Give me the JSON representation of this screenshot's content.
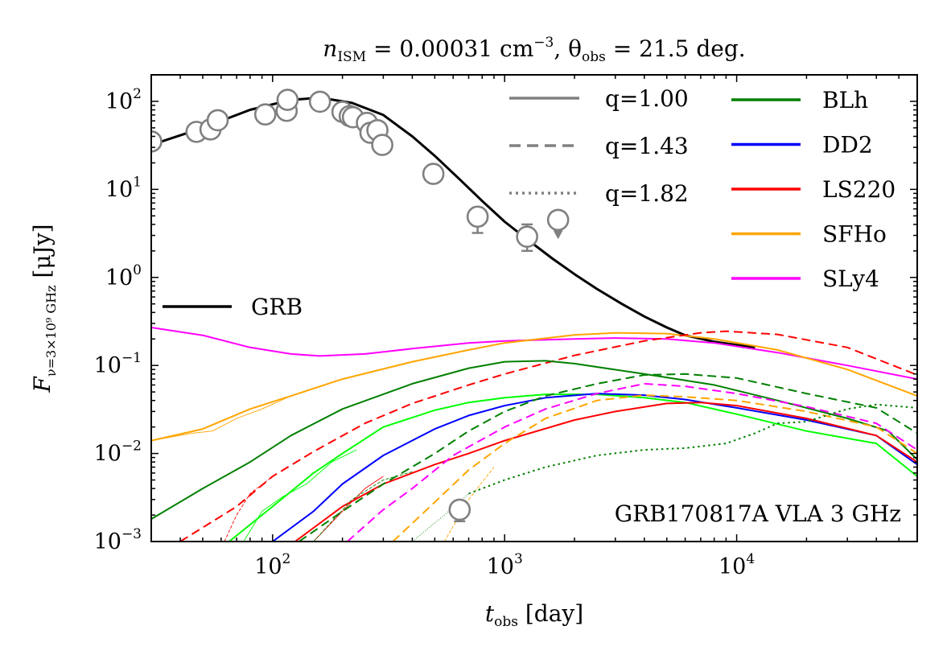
{
  "chart_data": {
    "type": "line",
    "title": "n_ISM = 0.00031 cm^-3, θ_obs = 21.5 deg.",
    "title_parts": {
      "n": "n",
      "n_sub": "ISM",
      "n_rest": " = 0.00031 cm",
      "n_exp": "−3",
      "theta": ", θ",
      "theta_sub": "obs",
      "theta_rest": " = 21.5 deg."
    },
    "xlabel_parts": {
      "t": "t",
      "sub": "obs",
      "unit": " [day]"
    },
    "ylabel_parts": {
      "F": "F",
      "sub": "ν=3×10⁹ GHz",
      "unit": " [μJy]"
    },
    "x_scale": "log",
    "y_scale": "log",
    "xlim": [
      30,
      60000
    ],
    "ylim": [
      0.001,
      200
    ],
    "x_ticks": [
      {
        "value": 100,
        "base": "10",
        "exp": "2"
      },
      {
        "value": 1000,
        "base": "10",
        "exp": "3"
      },
      {
        "value": 10000,
        "base": "10",
        "exp": "4"
      }
    ],
    "y_ticks": [
      {
        "value": 0.001,
        "base": "10",
        "exp": "−3"
      },
      {
        "value": 0.01,
        "base": "10",
        "exp": "−2"
      },
      {
        "value": 0.1,
        "base": "10",
        "exp": "−1"
      },
      {
        "value": 1,
        "base": "10",
        "exp": "0"
      },
      {
        "value": 10,
        "base": "10",
        "exp": "1"
      },
      {
        "value": 100,
        "base": "10",
        "exp": "2"
      }
    ],
    "annotation": "GRB170817A VLA 3 GHz",
    "legend_linestyle": [
      {
        "label": "q=1.00",
        "dash": "solid"
      },
      {
        "label": "q=1.43",
        "dash": "dashed"
      },
      {
        "label": "q=1.82",
        "dash": "dotted"
      }
    ],
    "legend_models": [
      {
        "label": "BLh",
        "color": "#008000"
      },
      {
        "label": "DD2",
        "color": "#0000ff"
      },
      {
        "label": "LS220",
        "color": "#ff0000"
      },
      {
        "label": "SFHo",
        "color": "#ffa500"
      },
      {
        "label": "SLy4",
        "color": "#ff00ff"
      }
    ],
    "legend_grb": {
      "label": "GRB",
      "color": "#000000"
    },
    "observations": {
      "color": "#808080",
      "points": [
        {
          "t": 30,
          "f": 35
        },
        {
          "t": 47,
          "f": 45
        },
        {
          "t": 54,
          "f": 48
        },
        {
          "t": 58,
          "f": 61
        },
        {
          "t": 93,
          "f": 71
        },
        {
          "t": 115,
          "f": 78
        },
        {
          "t": 116,
          "f": 104
        },
        {
          "t": 160,
          "f": 99
        },
        {
          "t": 200,
          "f": 76
        },
        {
          "t": 215,
          "f": 68
        },
        {
          "t": 222,
          "f": 66
        },
        {
          "t": 255,
          "f": 57
        },
        {
          "t": 264,
          "f": 44
        },
        {
          "t": 283,
          "f": 47
        },
        {
          "t": 297,
          "f": 32
        },
        {
          "t": 493,
          "f": 15
        },
        {
          "t": 765,
          "f": 4.9,
          "err_lo": 1.7,
          "err_hi": 1.3
        },
        {
          "t": 1250,
          "f": 2.9,
          "err_lo": 0.9,
          "err_hi": 1.1
        },
        {
          "t": 1700,
          "f": 4.5,
          "upper_limit": true
        },
        {
          "t": 640,
          "f": 0.0023,
          "err_lo": 0.0006,
          "err_hi": 0.0006
        }
      ]
    },
    "series": [
      {
        "name": "GRB",
        "color": "#000000",
        "dash": "solid",
        "width": 3.0,
        "points": [
          [
            30,
            32
          ],
          [
            50,
            50
          ],
          [
            80,
            80
          ],
          [
            120,
            104
          ],
          [
            160,
            110
          ],
          [
            220,
            96
          ],
          [
            300,
            70
          ],
          [
            400,
            40
          ],
          [
            500,
            24
          ],
          [
            650,
            12.5
          ],
          [
            800,
            7.4
          ],
          [
            1000,
            4.3
          ],
          [
            1300,
            2.5
          ],
          [
            1600,
            1.65
          ],
          [
            2000,
            1.09
          ],
          [
            2500,
            0.74
          ],
          [
            3200,
            0.5
          ],
          [
            4000,
            0.36
          ],
          [
            5000,
            0.27
          ],
          [
            6000,
            0.22
          ],
          [
            8000,
            0.186
          ],
          [
            10000,
            0.171
          ],
          [
            12000,
            0.16
          ]
        ]
      },
      {
        "color": "#ff00ff",
        "dash": "solid",
        "width": 2.0,
        "points": [
          [
            30,
            0.27
          ],
          [
            50,
            0.22
          ],
          [
            80,
            0.16
          ],
          [
            120,
            0.135
          ],
          [
            160,
            0.128
          ],
          [
            250,
            0.135
          ],
          [
            400,
            0.155
          ],
          [
            700,
            0.18
          ],
          [
            1000,
            0.19
          ],
          [
            2000,
            0.2
          ],
          [
            3000,
            0.205
          ],
          [
            5000,
            0.2
          ],
          [
            8000,
            0.18
          ],
          [
            15000,
            0.14
          ],
          [
            30000,
            0.1
          ],
          [
            60000,
            0.07
          ]
        ]
      },
      {
        "color": "#ffa500",
        "dash": "solid",
        "width": 2.0,
        "points": [
          [
            30,
            0.014
          ],
          [
            50,
            0.019
          ],
          [
            80,
            0.032
          ],
          [
            120,
            0.045
          ],
          [
            200,
            0.07
          ],
          [
            400,
            0.11
          ],
          [
            700,
            0.15
          ],
          [
            1000,
            0.18
          ],
          [
            2000,
            0.222
          ],
          [
            3000,
            0.235
          ],
          [
            5000,
            0.23
          ],
          [
            8000,
            0.2
          ],
          [
            15000,
            0.15
          ],
          [
            30000,
            0.09
          ],
          [
            60000,
            0.045
          ]
        ]
      },
      {
        "color": "#ffa500",
        "dash": "solid",
        "width": 0.9,
        "points": [
          [
            30,
            0.014
          ],
          [
            45,
            0.017
          ],
          [
            55,
            0.018
          ],
          [
            70,
            0.025
          ],
          [
            90,
            0.032
          ],
          [
            120,
            0.045
          ],
          [
            200,
            0.07
          ]
        ]
      },
      {
        "color": "#ff0000",
        "dash": "dashed",
        "width": 2.0,
        "points": [
          [
            40,
            0.001
          ],
          [
            70,
            0.0025
          ],
          [
            100,
            0.0055
          ],
          [
            150,
            0.0105
          ],
          [
            250,
            0.022
          ],
          [
            400,
            0.037
          ],
          [
            700,
            0.06
          ],
          [
            1000,
            0.08
          ],
          [
            2000,
            0.13
          ],
          [
            4000,
            0.19
          ],
          [
            7000,
            0.235
          ],
          [
            9000,
            0.245
          ],
          [
            15000,
            0.225
          ],
          [
            30000,
            0.16
          ],
          [
            60000,
            0.078
          ]
        ]
      },
      {
        "color": "#ff0000",
        "dash": "dashed",
        "width": 0.9,
        "points": [
          [
            62,
            0.001
          ],
          [
            70,
            0.002
          ],
          [
            80,
            0.0035
          ],
          [
            100,
            0.0055
          ]
        ]
      },
      {
        "color": "#008000",
        "dash": "solid",
        "width": 2.0,
        "points": [
          [
            30,
            0.0018
          ],
          [
            50,
            0.004
          ],
          [
            80,
            0.008
          ],
          [
            120,
            0.016
          ],
          [
            200,
            0.032
          ],
          [
            400,
            0.062
          ],
          [
            700,
            0.093
          ],
          [
            1000,
            0.11
          ],
          [
            1500,
            0.113
          ],
          [
            2000,
            0.105
          ],
          [
            4000,
            0.08
          ],
          [
            8000,
            0.06
          ],
          [
            15000,
            0.04
          ],
          [
            30000,
            0.025
          ],
          [
            45000,
            0.018
          ],
          [
            60000,
            0.0085
          ]
        ]
      },
      {
        "color": "#00ff00",
        "dash": "solid",
        "width": 2.0,
        "points": [
          [
            65,
            0.001
          ],
          [
            100,
            0.0025
          ],
          [
            150,
            0.006
          ],
          [
            200,
            0.01
          ],
          [
            300,
            0.02
          ],
          [
            500,
            0.031
          ],
          [
            700,
            0.038
          ],
          [
            1000,
            0.043
          ],
          [
            1500,
            0.047
          ],
          [
            2500,
            0.047
          ],
          [
            4000,
            0.043
          ],
          [
            6000,
            0.038
          ],
          [
            10000,
            0.028
          ],
          [
            20000,
            0.018
          ],
          [
            40000,
            0.013
          ],
          [
            60000,
            0.0055
          ]
        ]
      },
      {
        "color": "#00ff00",
        "dash": "solid",
        "width": 0.9,
        "points": [
          [
            75,
            0.001
          ],
          [
            90,
            0.0022
          ],
          [
            110,
            0.0032
          ],
          [
            140,
            0.0045
          ],
          [
            180,
            0.008
          ],
          [
            230,
            0.011
          ]
        ]
      },
      {
        "color": "#0000ff",
        "dash": "solid",
        "width": 2.0,
        "points": [
          [
            100,
            0.001
          ],
          [
            150,
            0.0022
          ],
          [
            200,
            0.0045
          ],
          [
            300,
            0.0095
          ],
          [
            500,
            0.019
          ],
          [
            700,
            0.027
          ],
          [
            1000,
            0.035
          ],
          [
            1500,
            0.043
          ],
          [
            2500,
            0.048
          ],
          [
            4000,
            0.046
          ],
          [
            6000,
            0.041
          ],
          [
            10000,
            0.033
          ],
          [
            20000,
            0.024
          ],
          [
            40000,
            0.016
          ],
          [
            60000,
            0.0075
          ]
        ]
      },
      {
        "color": "#ff0000",
        "dash": "solid",
        "width": 2.0,
        "points": [
          [
            125,
            0.001
          ],
          [
            200,
            0.0025
          ],
          [
            300,
            0.0045
          ],
          [
            500,
            0.0075
          ],
          [
            700,
            0.01
          ],
          [
            1000,
            0.014
          ],
          [
            2000,
            0.024
          ],
          [
            3000,
            0.03
          ],
          [
            5000,
            0.037
          ],
          [
            7000,
            0.038
          ],
          [
            10000,
            0.035
          ],
          [
            20000,
            0.025
          ],
          [
            40000,
            0.016
          ],
          [
            60000,
            0.008
          ]
        ]
      },
      {
        "color": "#ff0000",
        "dash": "solid",
        "width": 0.9,
        "points": [
          [
            150,
            0.001
          ],
          [
            200,
            0.0022
          ],
          [
            250,
            0.004
          ],
          [
            300,
            0.0055
          ]
        ]
      },
      {
        "color": "#008000",
        "dash": "dashed",
        "width": 2.0,
        "points": [
          [
            130,
            0.001
          ],
          [
            200,
            0.0022
          ],
          [
            300,
            0.0045
          ],
          [
            500,
            0.01
          ],
          [
            700,
            0.018
          ],
          [
            1000,
            0.03
          ],
          [
            1500,
            0.045
          ],
          [
            2500,
            0.062
          ],
          [
            4000,
            0.078
          ],
          [
            6000,
            0.08
          ],
          [
            10000,
            0.072
          ],
          [
            20000,
            0.048
          ],
          [
            40000,
            0.033
          ],
          [
            60000,
            0.017
          ]
        ]
      },
      {
        "color": "#008000",
        "dash": "dashed",
        "width": 0.9,
        "points": [
          [
            150,
            0.001
          ],
          [
            220,
            0.003
          ],
          [
            300,
            0.005
          ],
          [
            400,
            0.0062
          ]
        ]
      },
      {
        "color": "#ff00ff",
        "dash": "dashed",
        "width": 2.0,
        "points": [
          [
            210,
            0.001
          ],
          [
            300,
            0.0023
          ],
          [
            400,
            0.004
          ],
          [
            600,
            0.0095
          ],
          [
            1000,
            0.02
          ],
          [
            1500,
            0.032
          ],
          [
            2500,
            0.048
          ],
          [
            4000,
            0.062
          ],
          [
            6000,
            0.058
          ],
          [
            10000,
            0.048
          ],
          [
            20000,
            0.034
          ],
          [
            40000,
            0.022
          ],
          [
            60000,
            0.011
          ]
        ]
      },
      {
        "color": "#ffa500",
        "dash": "dashed",
        "width": 2.0,
        "points": [
          [
            330,
            0.001
          ],
          [
            500,
            0.0028
          ],
          [
            700,
            0.0065
          ],
          [
            1000,
            0.013
          ],
          [
            1500,
            0.025
          ],
          [
            2500,
            0.04
          ],
          [
            4000,
            0.046
          ],
          [
            6000,
            0.044
          ],
          [
            10000,
            0.04
          ],
          [
            20000,
            0.03
          ],
          [
            40000,
            0.02
          ],
          [
            60000,
            0.01
          ]
        ]
      },
      {
        "color": "#ffa500",
        "dash": "dashed",
        "width": 0.9,
        "points": [
          [
            550,
            0.001
          ],
          [
            700,
            0.003
          ],
          [
            900,
            0.007
          ]
        ]
      },
      {
        "color": "#008000",
        "dash": "dotted",
        "width": 2.0,
        "points": [
          [
            700,
            0.0035
          ],
          [
            1000,
            0.005
          ],
          [
            1500,
            0.007
          ],
          [
            2500,
            0.0095
          ],
          [
            4000,
            0.011
          ],
          [
            6000,
            0.0115
          ],
          [
            9000,
            0.013
          ],
          [
            12000,
            0.017
          ],
          [
            15000,
            0.022
          ],
          [
            20000,
            0.023
          ],
          [
            30000,
            0.032
          ],
          [
            40000,
            0.036
          ],
          [
            60000,
            0.033
          ]
        ]
      },
      {
        "color": "#008000",
        "dash": "dotted",
        "width": 0.9,
        "points": [
          [
            400,
            0.001
          ],
          [
            550,
            0.002
          ],
          [
            700,
            0.0035
          ]
        ]
      }
    ]
  }
}
